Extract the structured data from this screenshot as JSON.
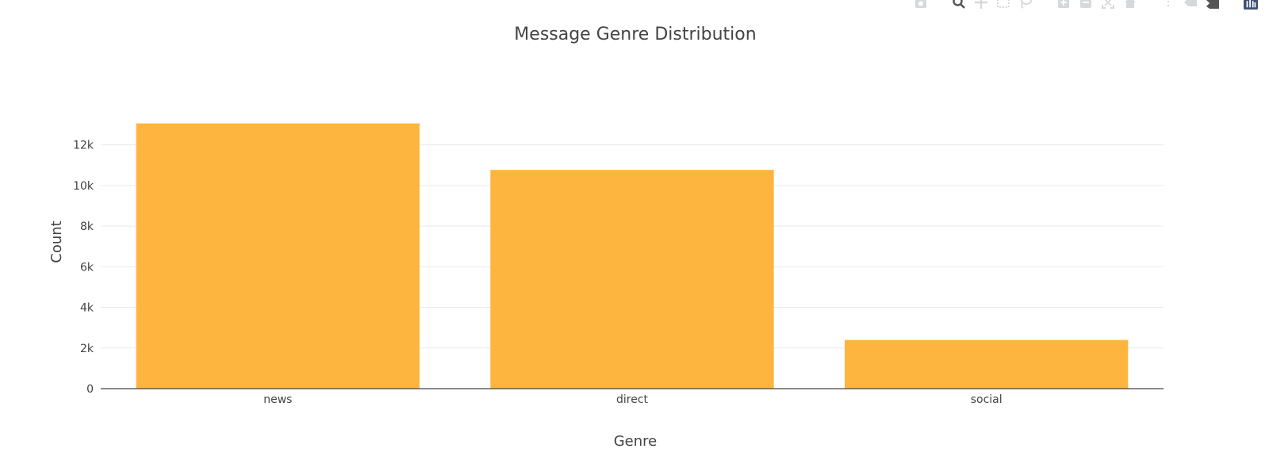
{
  "chart_data": {
    "type": "bar",
    "title": "Message Genre Distribution",
    "xlabel": "Genre",
    "ylabel": "Count",
    "categories": [
      "news",
      "direct",
      "social"
    ],
    "values": [
      13054,
      10766,
      2396
    ],
    "ylim": [
      0,
      13741
    ],
    "yticks": [
      0,
      2000,
      4000,
      6000,
      8000,
      10000,
      12000
    ],
    "ytick_labels": [
      "0",
      "2k",
      "4k",
      "6k",
      "8k",
      "10k",
      "12k"
    ],
    "bar_color": "#fdb53f",
    "grid": true,
    "legend": "none"
  },
  "modebar": {
    "buttons": [
      {
        "name": "camera-icon"
      },
      {
        "name": "zoom-icon"
      },
      {
        "name": "pan-icon"
      },
      {
        "name": "box-select-icon"
      },
      {
        "name": "lasso-icon"
      },
      {
        "name": "zoom-in-icon"
      },
      {
        "name": "zoom-out-icon"
      },
      {
        "name": "autoscale-icon"
      },
      {
        "name": "home-icon"
      },
      {
        "name": "spike-lines-icon"
      },
      {
        "name": "hover-closest-icon"
      },
      {
        "name": "hover-compare-icon"
      },
      {
        "name": "plotly-logo-icon"
      }
    ]
  }
}
